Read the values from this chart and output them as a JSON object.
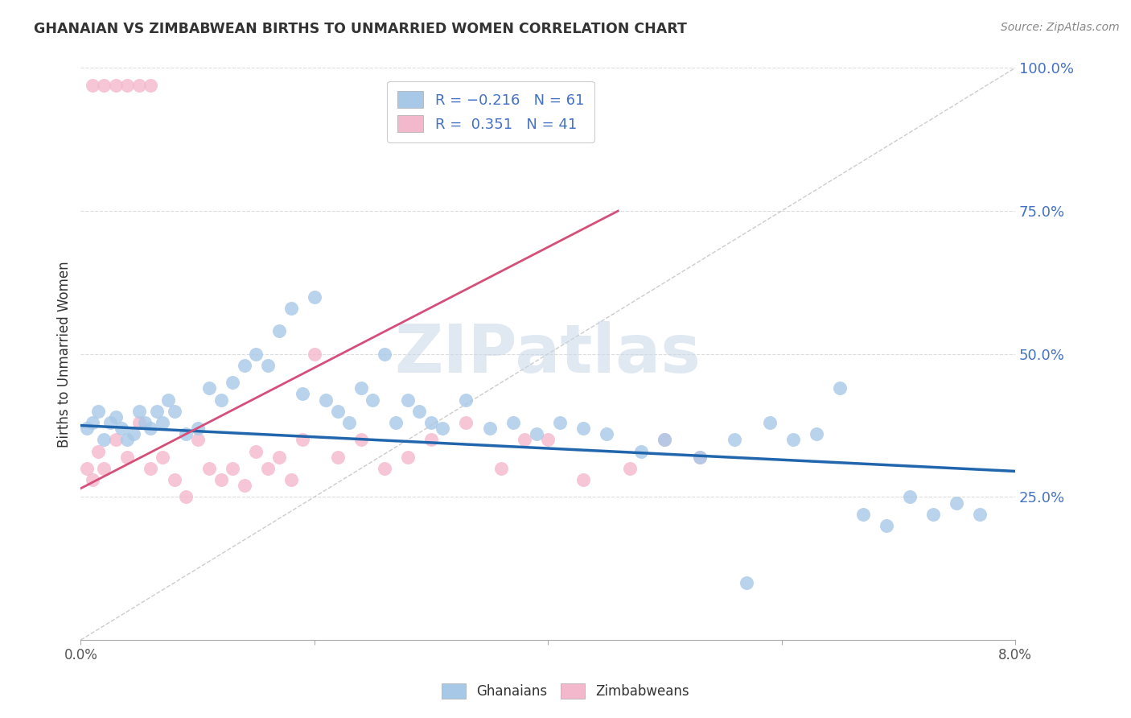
{
  "title": "GHANAIAN VS ZIMBABWEAN BIRTHS TO UNMARRIED WOMEN CORRELATION CHART",
  "source": "Source: ZipAtlas.com",
  "ylabel": "Births to Unmarried Women",
  "xmin": 0.0,
  "xmax": 0.08,
  "ymin": 0.0,
  "ymax": 1.0,
  "yticks": [
    0.25,
    0.5,
    0.75,
    1.0
  ],
  "ytick_labels": [
    "25.0%",
    "50.0%",
    "75.0%",
    "100.0%"
  ],
  "xticks": [
    0.0,
    0.02,
    0.04,
    0.06,
    0.08
  ],
  "xtick_labels": [
    "0.0%",
    "",
    "",
    "",
    "8.0%"
  ],
  "ghanaian_color": "#a8c8e8",
  "zimbabwean_color": "#f4b8cc",
  "ghanaian_line_color": "#2166ac",
  "zimbabwean_line_color": "#d64e7a",
  "diagonal_color": "#cccccc",
  "background_color": "#ffffff",
  "grid_color": "#dddddd",
  "title_color": "#333333",
  "source_color": "#888888",
  "ghanaian_x": [
    0.0005,
    0.001,
    0.0015,
    0.002,
    0.0025,
    0.003,
    0.0035,
    0.004,
    0.0045,
    0.005,
    0.0055,
    0.006,
    0.0065,
    0.007,
    0.0075,
    0.008,
    0.009,
    0.01,
    0.011,
    0.012,
    0.013,
    0.014,
    0.015,
    0.016,
    0.017,
    0.018,
    0.019,
    0.02,
    0.021,
    0.022,
    0.023,
    0.024,
    0.025,
    0.026,
    0.027,
    0.028,
    0.029,
    0.03,
    0.031,
    0.033,
    0.035,
    0.037,
    0.039,
    0.041,
    0.043,
    0.045,
    0.048,
    0.05,
    0.053,
    0.056,
    0.057,
    0.059,
    0.061,
    0.063,
    0.065,
    0.067,
    0.069,
    0.071,
    0.073,
    0.075,
    0.077
  ],
  "ghanaian_y": [
    0.37,
    0.38,
    0.4,
    0.35,
    0.38,
    0.39,
    0.37,
    0.35,
    0.36,
    0.4,
    0.38,
    0.37,
    0.4,
    0.38,
    0.42,
    0.4,
    0.36,
    0.37,
    0.44,
    0.42,
    0.45,
    0.48,
    0.5,
    0.48,
    0.54,
    0.58,
    0.43,
    0.6,
    0.42,
    0.4,
    0.38,
    0.44,
    0.42,
    0.5,
    0.38,
    0.42,
    0.4,
    0.38,
    0.37,
    0.42,
    0.37,
    0.38,
    0.36,
    0.38,
    0.37,
    0.36,
    0.33,
    0.35,
    0.32,
    0.35,
    0.1,
    0.38,
    0.35,
    0.36,
    0.44,
    0.22,
    0.2,
    0.25,
    0.22,
    0.24,
    0.22
  ],
  "zimbabwean_x": [
    0.0005,
    0.001,
    0.0015,
    0.002,
    0.003,
    0.004,
    0.005,
    0.006,
    0.007,
    0.008,
    0.009,
    0.01,
    0.011,
    0.012,
    0.013,
    0.014,
    0.015,
    0.016,
    0.017,
    0.018,
    0.019,
    0.02,
    0.022,
    0.024,
    0.026,
    0.028,
    0.03,
    0.033,
    0.036,
    0.038,
    0.04,
    0.043,
    0.047,
    0.05,
    0.053,
    0.001,
    0.002,
    0.003,
    0.004,
    0.005,
    0.006
  ],
  "zimbabwean_y": [
    0.3,
    0.28,
    0.33,
    0.3,
    0.35,
    0.32,
    0.38,
    0.3,
    0.32,
    0.28,
    0.25,
    0.35,
    0.3,
    0.28,
    0.3,
    0.27,
    0.33,
    0.3,
    0.32,
    0.28,
    0.35,
    0.5,
    0.32,
    0.35,
    0.3,
    0.32,
    0.35,
    0.38,
    0.3,
    0.35,
    0.35,
    0.28,
    0.3,
    0.35,
    0.32,
    0.97,
    0.97,
    0.97,
    0.97,
    0.97,
    0.97
  ]
}
